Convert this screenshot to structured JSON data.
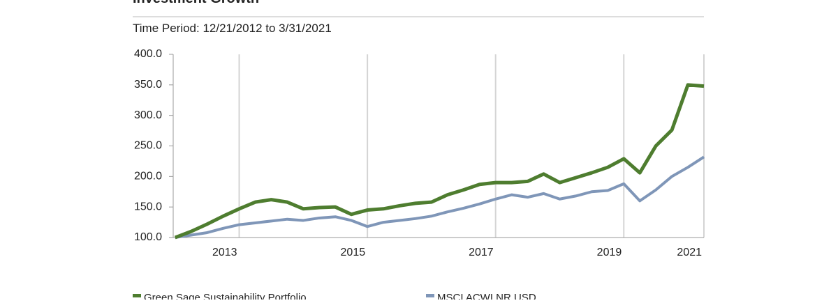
{
  "chart_data": {
    "type": "line",
    "title": "Investment Growth",
    "subtitle": "Time Period: 12/21/2012 to 3/31/2021",
    "x": [
      2013.0,
      2013.25,
      2013.5,
      2013.75,
      2014.0,
      2014.25,
      2014.5,
      2014.75,
      2015.0,
      2015.25,
      2015.5,
      2015.75,
      2016.0,
      2016.25,
      2016.5,
      2016.75,
      2017.0,
      2017.25,
      2017.5,
      2017.75,
      2018.0,
      2018.25,
      2018.5,
      2018.75,
      2019.0,
      2019.25,
      2019.5,
      2019.75,
      2020.0,
      2020.25,
      2020.5,
      2020.75,
      2021.0,
      2021.25
    ],
    "series": [
      {
        "name": "Green Sage Sustainability Portfolio",
        "color": "#4e7d2f",
        "values": [
          100,
          110,
          122,
          135,
          147,
          158,
          162,
          158,
          147,
          149,
          150,
          138,
          145,
          147,
          152,
          156,
          158,
          170,
          178,
          187,
          190,
          190,
          192,
          204,
          190,
          198,
          206,
          215,
          229,
          206,
          250,
          276,
          350,
          348
        ]
      },
      {
        "name": "MSCI ACWI NR USD",
        "color": "#7f96b8",
        "values": [
          100,
          104,
          108,
          115,
          121,
          124,
          127,
          130,
          128,
          132,
          134,
          128,
          118,
          125,
          128,
          131,
          135,
          142,
          148,
          155,
          163,
          170,
          166,
          172,
          163,
          168,
          175,
          177,
          188,
          160,
          178,
          200,
          215,
          232
        ]
      }
    ],
    "xlim": [
      2012.97,
      2021.25
    ],
    "xticks": [
      {
        "value": 2014,
        "label": "2013"
      },
      {
        "value": 2016,
        "label": "2015"
      },
      {
        "value": 2018,
        "label": "2017"
      },
      {
        "value": 2020,
        "label": "2019"
      },
      {
        "value": 2021.25,
        "label": "2021"
      }
    ],
    "ylim": [
      100,
      400
    ],
    "yticks": [
      {
        "value": 100,
        "label": "100.0"
      },
      {
        "value": 150,
        "label": "150.0"
      },
      {
        "value": 200,
        "label": "200.0"
      },
      {
        "value": 250,
        "label": "250.0"
      },
      {
        "value": 300,
        "label": "300.0"
      },
      {
        "value": 350,
        "label": "350.0"
      },
      {
        "value": 400,
        "label": "400.0"
      }
    ],
    "grid": true
  }
}
